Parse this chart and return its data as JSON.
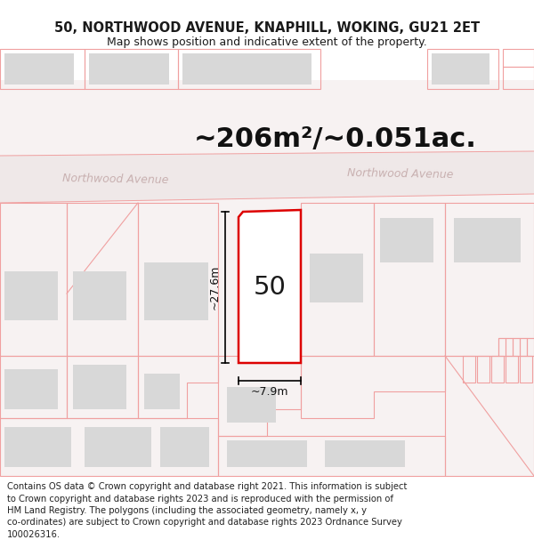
{
  "title_line1": "50, NORTHWOOD AVENUE, KNAPHILL, WOKING, GU21 2ET",
  "title_line2": "Map shows position and indicative extent of the property.",
  "area_text": "~206m²/~0.051ac.",
  "road_name_left": "Northwood Avenue",
  "road_name_right": "Northwood Avenue",
  "property_number": "50",
  "dim_height": "~27.6m",
  "dim_width": "~7.9m",
  "footer_lines": [
    "Contains OS data © Crown copyright and database right 2021. This information is subject",
    "to Crown copyright and database rights 2023 and is reproduced with the permission of",
    "HM Land Registry. The polygons (including the associated geometry, namely x, y",
    "co-ordinates) are subject to Crown copyright and database rights 2023 Ordnance Survey",
    "100026316."
  ],
  "bg_color": "#ffffff",
  "map_bg": "#f7f2f2",
  "plot_outline_color": "#dd0000",
  "other_outline_color": "#f0a0a0",
  "building_fill": "#d8d8d8",
  "title_fontsize": 10.5,
  "subtitle_fontsize": 9,
  "area_fontsize": 22,
  "footer_fontsize": 7.2,
  "road_label_color": "#c8b0b0",
  "road_label_fontsize": 9
}
